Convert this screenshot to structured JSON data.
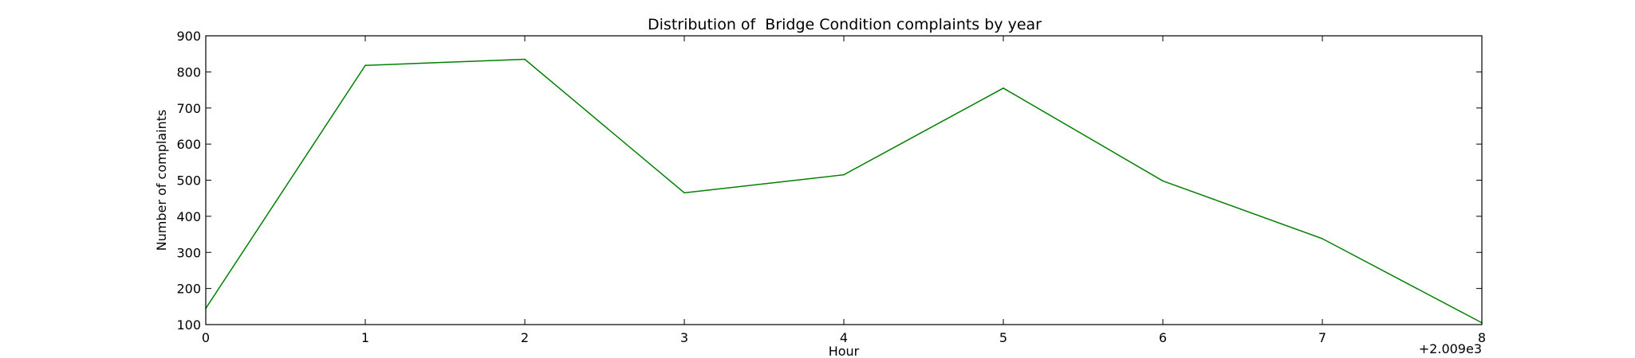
{
  "chart_data": {
    "type": "line",
    "title": "Distribution of  Bridge Condition complaints by year",
    "xlabel": "Hour",
    "ylabel": "Number of complaints",
    "x_offset_label": "+2.009e3",
    "x": [
      0,
      1,
      2,
      3,
      4,
      5,
      6,
      7,
      8
    ],
    "x_tick_labels": [
      "0",
      "1",
      "2",
      "3",
      "4",
      "5",
      "6",
      "7",
      "8"
    ],
    "y_tick_labels": [
      "100",
      "200",
      "300",
      "400",
      "500",
      "600",
      "700",
      "800",
      "900"
    ],
    "xlim": [
      0,
      8
    ],
    "ylim": [
      100,
      900
    ],
    "series": [
      {
        "values": [
          145,
          818,
          835,
          465,
          515,
          755,
          498,
          338,
          105
        ],
        "color": "#008000"
      }
    ],
    "grid": false
  }
}
